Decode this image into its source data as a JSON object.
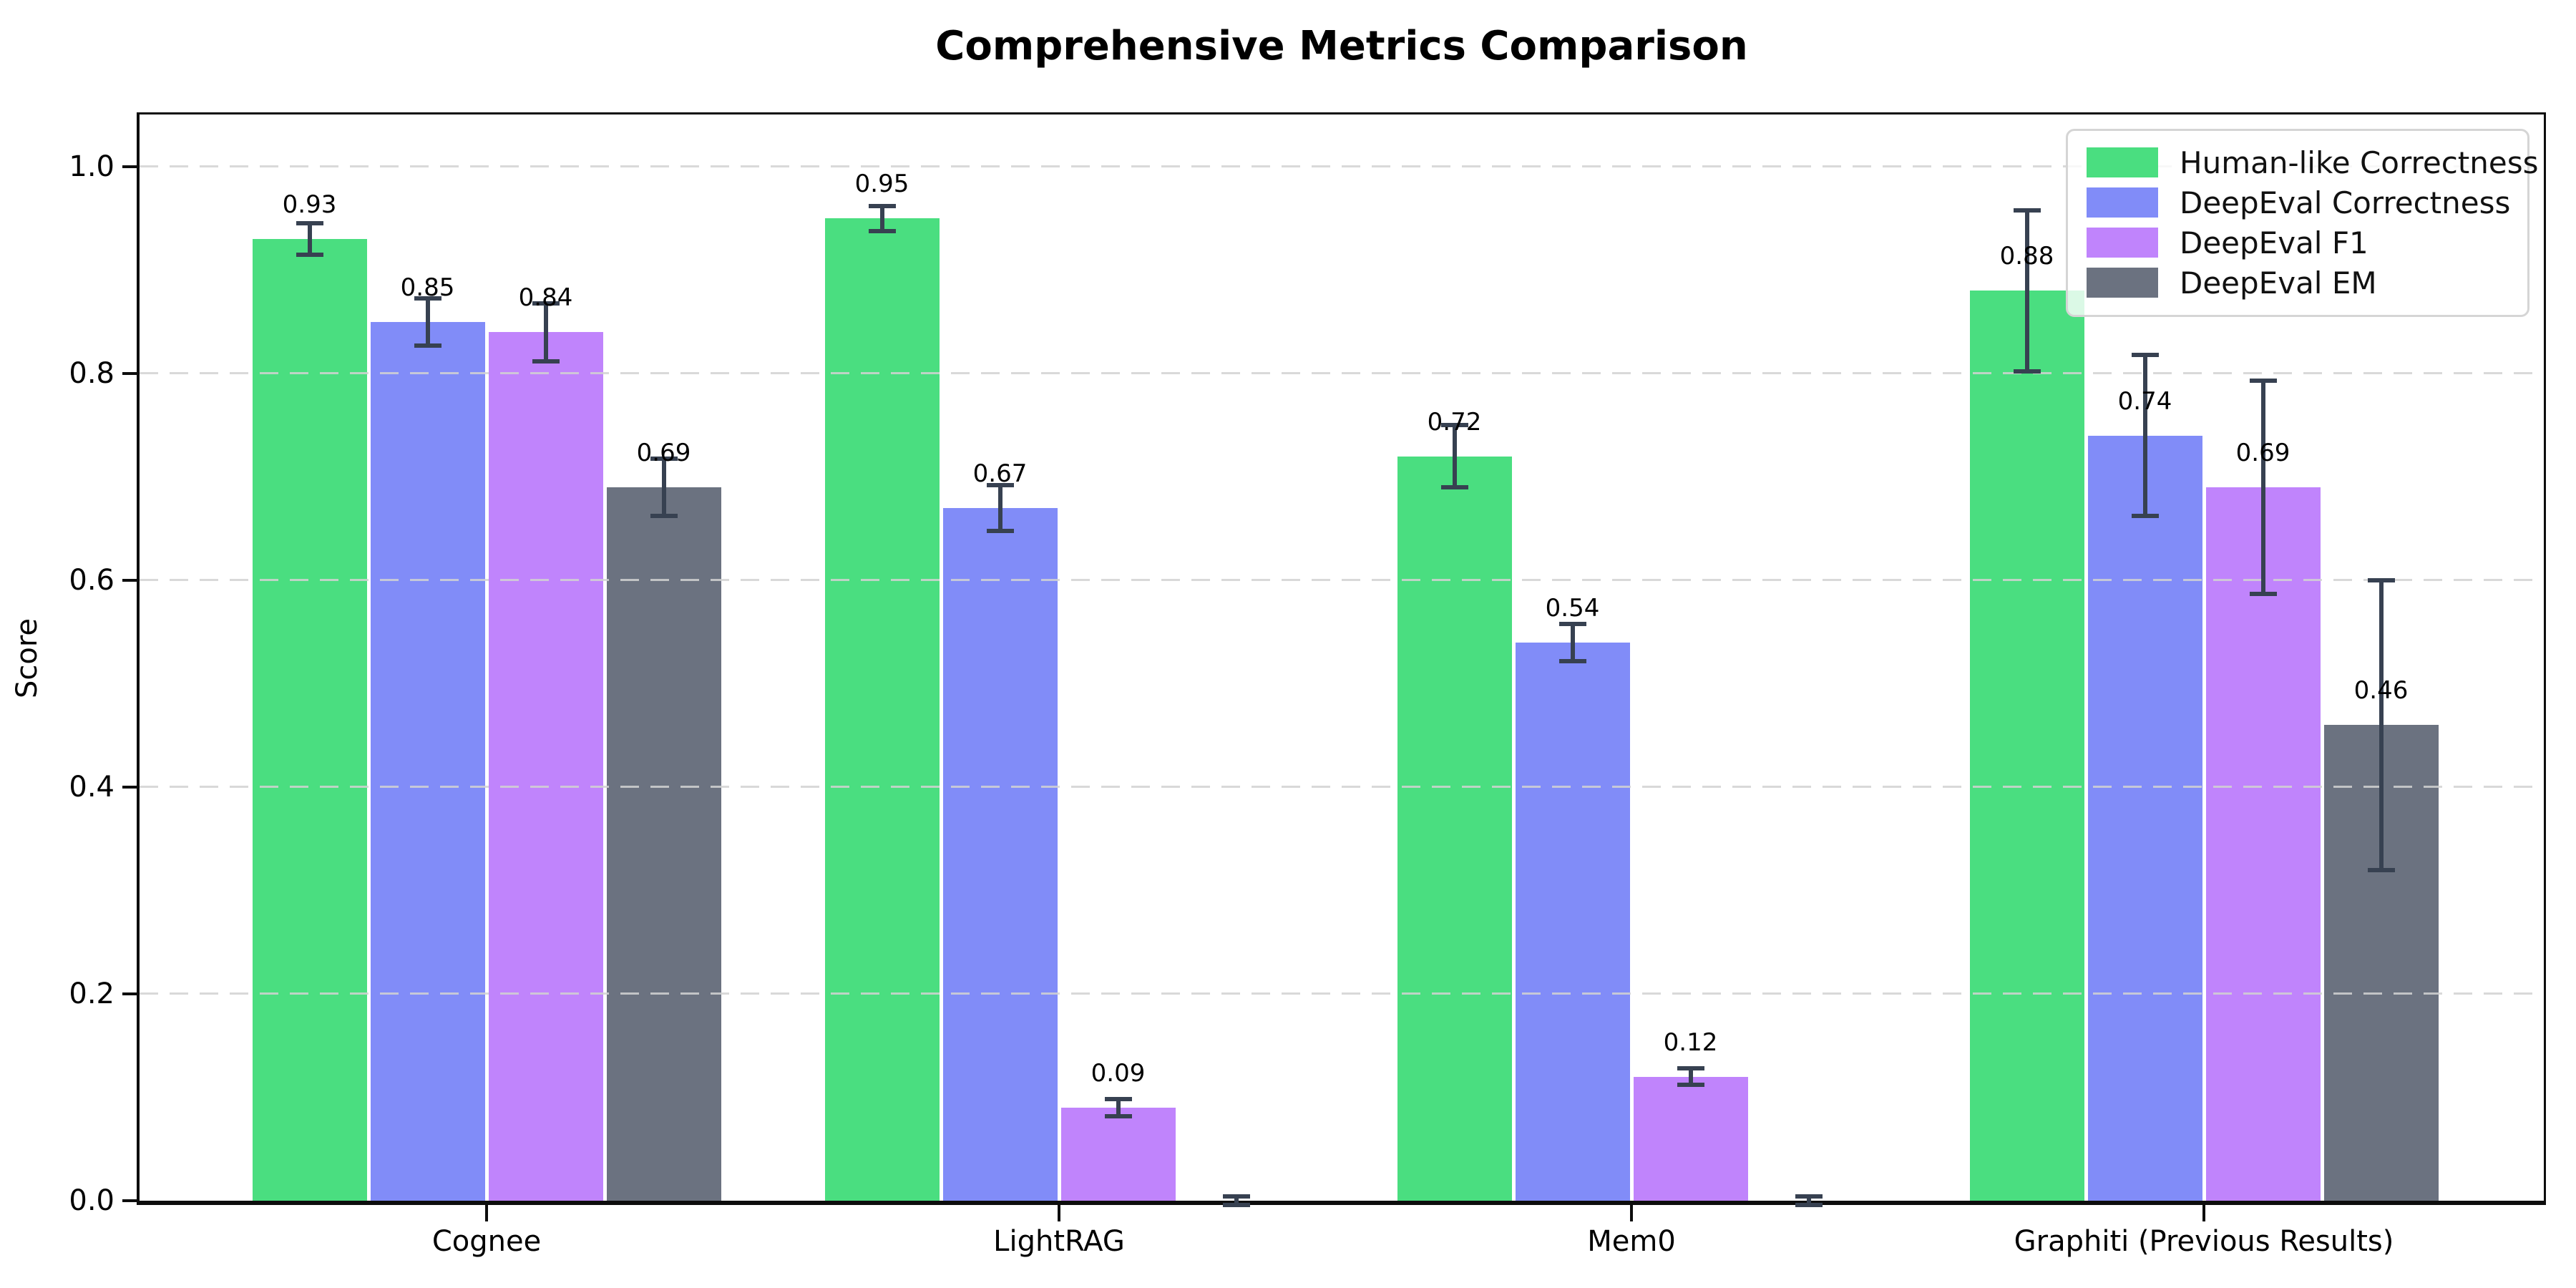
{
  "title": "Comprehensive Metrics Comparison",
  "axes": {
    "ylabel": "Score",
    "y_tick_labels": [
      "0.0",
      "0.2",
      "0.4",
      "0.6",
      "0.8",
      "1.0"
    ],
    "x_tick_labels": [
      "Cognee",
      "LightRAG",
      "Mem0",
      "Graphiti (Previous Results)"
    ]
  },
  "legend": {
    "position": "upper right",
    "entries": [
      "Human-like Correctness",
      "DeepEval Correctness",
      "DeepEval F1",
      "DeepEval EM"
    ]
  },
  "colors": {
    "human_like_correctness": "#4ade80",
    "deepeval_correctness": "#818cf8",
    "deepeval_f1": "#c084fc",
    "deepeval_em": "#6b7280",
    "error_bar": "#374151",
    "gridline": "#d2d2d2",
    "axis": "#0d0d0d",
    "background": "#ffffff"
  },
  "chart_data": {
    "type": "bar",
    "title": "Comprehensive Metrics Comparison",
    "xlabel": "",
    "ylabel": "Score",
    "ylim": [
      0,
      1.05
    ],
    "grid": "horizontal dashed at 0.2 intervals, drawn over bars",
    "legend_position": "upper right",
    "categories": [
      "Cognee",
      "LightRAG",
      "Mem0",
      "Graphiti (Previous Results)"
    ],
    "series": [
      {
        "name": "Human-like Correctness",
        "color": "#4ade80",
        "values": [
          0.93,
          0.95,
          0.72,
          0.88
        ],
        "errors": [
          0.015,
          0.012,
          0.03,
          0.078
        ],
        "value_labels": [
          "0.93",
          "0.95",
          "0.72",
          "0.88"
        ]
      },
      {
        "name": "DeepEval Correctness",
        "color": "#818cf8",
        "values": [
          0.85,
          0.67,
          0.54,
          0.74
        ],
        "errors": [
          0.023,
          0.022,
          0.018,
          0.078
        ],
        "value_labels": [
          "0.85",
          "0.67",
          "0.54",
          "0.74"
        ]
      },
      {
        "name": "DeepEval F1",
        "color": "#c084fc",
        "values": [
          0.84,
          0.09,
          0.12,
          0.69
        ],
        "errors": [
          0.028,
          0.008,
          0.008,
          0.103
        ],
        "value_labels": [
          "0.84",
          "0.09",
          "0.12",
          "0.69"
        ]
      },
      {
        "name": "DeepEval EM",
        "color": "#6b7280",
        "values": [
          0.69,
          0.0,
          0.0,
          0.46
        ],
        "errors": [
          0.028,
          0.004,
          0.004,
          0.14
        ],
        "value_labels": [
          "0.69",
          "",
          "",
          "0.46"
        ]
      }
    ]
  }
}
